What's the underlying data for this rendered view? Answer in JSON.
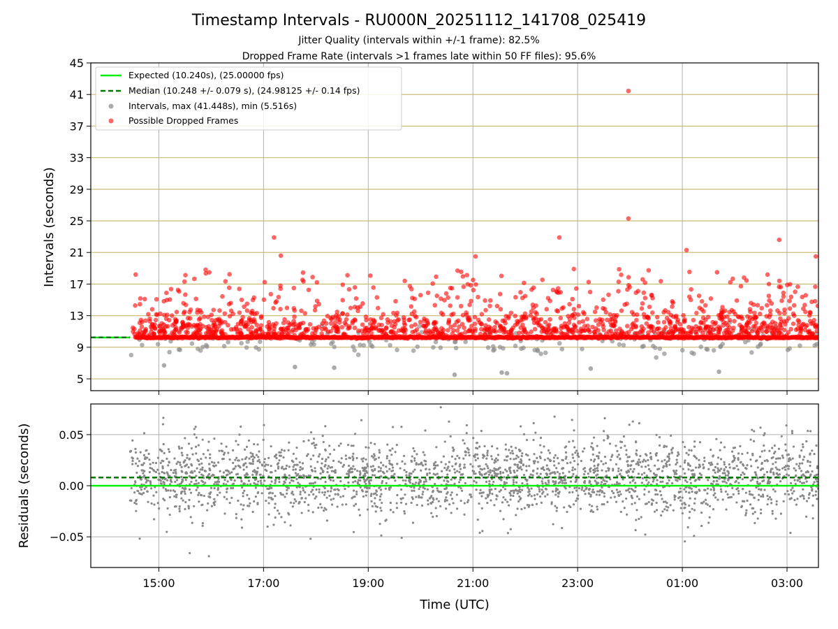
{
  "chart_data": [
    {
      "type": "scatter",
      "title": "Timestamp Intervals - RU000N_20251112_141708_025419",
      "subtitle_1": "Jitter Quality (intervals within +/-1 frame): 82.5%",
      "subtitle_2": "Dropped Frame Rate (intervals >1 frames late within 50 FF files): 95.6%",
      "ylabel": "Intervals (seconds)",
      "ylim": [
        3.5,
        45
      ],
      "y_ticks": [
        5,
        9,
        13,
        17,
        21,
        25,
        29,
        33,
        37,
        41,
        45
      ],
      "y_tick_labels": [
        "5",
        "9",
        "13",
        "17",
        "21",
        "25",
        "29",
        "33",
        "37",
        "41",
        "45"
      ],
      "x_range_hours": [
        13.7,
        27.6
      ],
      "x_ticks_hours": [
        15,
        17,
        19,
        21,
        23,
        25,
        27
      ],
      "grid": true,
      "legend_position": "upper-left",
      "legend": [
        "Expected (10.240s), (25.00000 fps)",
        "Median (10.248 +/- 0.079 s), (24.98125 +/- 0.14 fps)",
        "Intervals, max (41.448s), min (5.516s)",
        "Possible Dropped Frames"
      ],
      "expected_interval": 10.24,
      "median_interval": 10.248,
      "median_std": 0.079,
      "max_interval": 41.448,
      "min_interval": 5.516,
      "time_start_hours": 14.45,
      "time_end_hours": 27.6,
      "colors": {
        "expected": "#00ee00",
        "median": "#007700",
        "intervals": "#888888",
        "dropped": "#ff0000",
        "hgrid": "#c8b46e",
        "vgrid": "#b0b0b0"
      },
      "dropped_outliers": [
        {
          "x": 23.97,
          "y": 41.448
        },
        {
          "x": 23.97,
          "y": 25.3
        },
        {
          "x": 17.2,
          "y": 22.9
        },
        {
          "x": 22.65,
          "y": 22.9
        },
        {
          "x": 26.85,
          "y": 22.6
        },
        {
          "x": 25.08,
          "y": 21.3
        },
        {
          "x": 17.33,
          "y": 20.6
        },
        {
          "x": 21.05,
          "y": 20.5
        },
        {
          "x": 27.55,
          "y": 20.5
        }
      ],
      "low_outliers": [
        {
          "x": 20.65,
          "y": 5.516
        },
        {
          "x": 21.55,
          "y": 5.8
        },
        {
          "x": 21.65,
          "y": 5.7
        },
        {
          "x": 25.7,
          "y": 5.9
        },
        {
          "x": 15.1,
          "y": 6.7
        },
        {
          "x": 17.6,
          "y": 6.5
        },
        {
          "x": 18.35,
          "y": 6.4
        },
        {
          "x": 23.25,
          "y": 6.3
        }
      ]
    },
    {
      "type": "scatter",
      "xlabel": "Time (UTC)",
      "ylabel": "Residuals (seconds)",
      "ylim": [
        -0.08,
        0.08
      ],
      "y_ticks": [
        -0.05,
        0.0,
        0.05
      ],
      "y_tick_labels": [
        "−0.05",
        "0.00",
        "0.05"
      ],
      "x_tick_labels": [
        "15:00",
        "17:00",
        "19:00",
        "21:00",
        "23:00",
        "01:00",
        "03:00"
      ],
      "expected_residual": 0.0,
      "median_residual": 0.008,
      "residual_spread": 0.018,
      "grid": true
    }
  ]
}
